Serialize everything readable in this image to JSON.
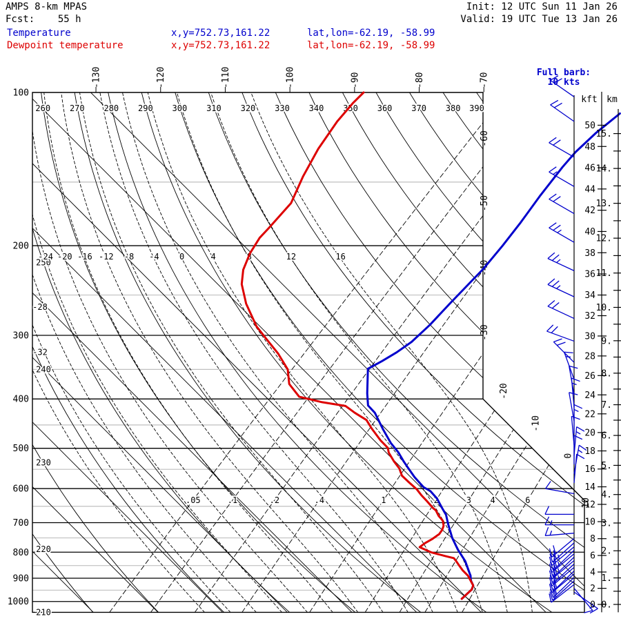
{
  "header": {
    "model": "AMPS 8-km MPAS",
    "fcst": "Fcst:    55 h",
    "init": "Init: 12 UTC Sun 11 Jan 26",
    "valid": "Valid: 19 UTC Tue 13 Jan 26",
    "temp_label": "Temperature",
    "temp_xy": "x,y=752.73,161.22",
    "temp_latlon": "lat,lon=-62.19, -58.99",
    "dewp_label": "Dewpoint temperature",
    "dewp_xy": "x,y=752.73,161.22",
    "dewp_latlon": "lat,lon=-62.19, -58.99"
  },
  "wind_legend": {
    "line1": "Full barb:",
    "line2": "10 kts"
  },
  "colors": {
    "temperature": "#0000cc",
    "dewpoint": "#dd0000",
    "grid": "#000000",
    "grid_minor": "#bfbfbf",
    "barbs": "#0000cc"
  },
  "chart_data": {
    "type": "skewt-log-p (pressure hPa vs temperature degC)",
    "pressure_axis_labels": [
      100,
      200,
      300,
      400,
      500,
      600,
      700,
      800,
      900,
      1000
    ],
    "pressure_minor_lines": [
      150,
      250,
      350,
      450,
      550,
      650,
      750,
      850,
      950
    ],
    "pressure_bottom": 1050,
    "isotherm_step": 10,
    "isotherm_top_labels": [
      -130,
      -120,
      -110,
      -100,
      -90,
      -80,
      -70
    ],
    "isotherm_right_labels": [
      -60,
      -50,
      -40,
      -30
    ],
    "isotherm_edge_labels": [
      -20,
      -10,
      0,
      10
    ],
    "dry_adiabat_top_labels": [
      260,
      270,
      280,
      290,
      300,
      310,
      320,
      330,
      340,
      350,
      360,
      370,
      380,
      390
    ],
    "dry_adiabat_left_labels": [
      250,
      240,
      230,
      220,
      210
    ],
    "moist_adiabat_row_labels": [
      -24,
      -20,
      -16,
      -12,
      -8,
      -4,
      0,
      4,
      8,
      12,
      16
    ],
    "moist_adiabat_left_labels": [
      -28,
      -32
    ],
    "moist_adiabats_drawn": [
      -36,
      -32,
      -28,
      -24,
      -20,
      -16,
      -12,
      -8,
      -4,
      0,
      4,
      8,
      12,
      16
    ],
    "mixing_ratio_g_kg": [
      0.05,
      0.1,
      0.2,
      0.4,
      1,
      2,
      3,
      4,
      6
    ],
    "mixing_ratio_labels": [
      ".05",
      ".1",
      ".2",
      ".4",
      "1",
      "2",
      "3",
      "4",
      "6"
    ],
    "kft_axis": {
      "title": "kft",
      "max": 50,
      "label_step": 2
    },
    "km_axis": {
      "title": "km",
      "max": 15,
      "label_step": 1,
      "tick_step": 0.5,
      "label_suffix": "."
    },
    "temperature_profile_p_T": [
      [
        988,
        4.9
      ],
      [
        947,
        5.0
      ],
      [
        930,
        4.6
      ],
      [
        908,
        3.4
      ],
      [
        890,
        2.7
      ],
      [
        877,
        2.0
      ],
      [
        833,
        -0.4
      ],
      [
        791,
        -3.3
      ],
      [
        750,
        -6.0
      ],
      [
        704,
        -8.8
      ],
      [
        676,
        -10.5
      ],
      [
        655,
        -12.2
      ],
      [
        627,
        -14.5
      ],
      [
        607,
        -16.6
      ],
      [
        596,
        -18.3
      ],
      [
        570,
        -21.2
      ],
      [
        547,
        -23.6
      ],
      [
        530,
        -25.4
      ],
      [
        509,
        -27.6
      ],
      [
        488,
        -30.2
      ],
      [
        458,
        -33.6
      ],
      [
        426,
        -37.3
      ],
      [
        412,
        -39.5
      ],
      [
        390,
        -41.5
      ],
      [
        349,
        -45.2
      ],
      [
        337,
        -44.2
      ],
      [
        324,
        -43.3
      ],
      [
        309,
        -42.6
      ],
      [
        286,
        -42.4
      ],
      [
        260,
        -42.6
      ],
      [
        240,
        -42.7
      ],
      [
        222,
        -42.8
      ],
      [
        200,
        -43.4
      ],
      [
        180,
        -44.2
      ],
      [
        160,
        -45.3
      ],
      [
        140,
        -46.3
      ],
      [
        131,
        -46.6
      ],
      [
        120,
        -46.4
      ],
      [
        110,
        -45.7
      ]
    ],
    "dewpoint_profile_p_Td": [
      [
        988,
        4.9
      ],
      [
        947,
        5.0
      ],
      [
        930,
        4.6
      ],
      [
        890,
        2.3
      ],
      [
        868,
        0.6
      ],
      [
        846,
        -0.9
      ],
      [
        833,
        -1.8
      ],
      [
        822,
        -2.6
      ],
      [
        814,
        -4.3
      ],
      [
        800,
        -7.1
      ],
      [
        782,
        -9.6
      ],
      [
        768,
        -9.4
      ],
      [
        753,
        -8.9
      ],
      [
        737,
        -8.6
      ],
      [
        723,
        -8.8
      ],
      [
        710,
        -9.2
      ],
      [
        694,
        -10.1
      ],
      [
        679,
        -11.5
      ],
      [
        662,
        -12.8
      ],
      [
        656,
        -13.5
      ],
      [
        635,
        -15.6
      ],
      [
        618,
        -17.4
      ],
      [
        602,
        -19.0
      ],
      [
        584,
        -21.2
      ],
      [
        566,
        -23.4
      ],
      [
        548,
        -24.9
      ],
      [
        531,
        -26.8
      ],
      [
        510,
        -29.0
      ],
      [
        499,
        -29.9
      ],
      [
        483,
        -32.1
      ],
      [
        457,
        -35.4
      ],
      [
        440,
        -37.5
      ],
      [
        426,
        -40.4
      ],
      [
        413,
        -42.9
      ],
      [
        406,
        -47.1
      ],
      [
        396,
        -51.5
      ],
      [
        374,
        -55.0
      ],
      [
        350,
        -57.5
      ],
      [
        326,
        -61.4
      ],
      [
        305,
        -65.5
      ],
      [
        288,
        -69.0
      ],
      [
        260,
        -74.1
      ],
      [
        238,
        -77.8
      ],
      [
        223,
        -79.8
      ],
      [
        207,
        -81.3
      ],
      [
        193,
        -82.2
      ],
      [
        184,
        -82.3
      ],
      [
        179,
        -82.4
      ],
      [
        165,
        -82.7
      ],
      [
        146,
        -85.0
      ],
      [
        129,
        -86.9
      ],
      [
        114,
        -88.2
      ],
      [
        105,
        -88.6
      ],
      [
        100,
        -88.6
      ]
    ],
    "wind_barbs_p_kt_dir": [
      [
        102,
        20,
        305
      ],
      [
        114,
        20,
        305
      ],
      [
        134,
        20,
        300
      ],
      [
        153,
        15,
        300
      ],
      [
        173,
        20,
        300
      ],
      [
        197,
        25,
        300
      ],
      [
        224,
        25,
        295
      ],
      [
        252,
        25,
        295
      ],
      [
        278,
        22,
        295
      ],
      [
        308,
        20,
        290
      ],
      [
        339,
        20,
        315
      ],
      [
        366,
        15,
        340
      ],
      [
        392,
        12,
        350
      ],
      [
        415,
        15,
        355
      ],
      [
        442,
        10,
        350
      ],
      [
        468,
        15,
        0
      ],
      [
        493,
        10,
        355
      ],
      [
        517,
        15,
        5
      ],
      [
        538,
        10,
        0
      ],
      [
        561,
        15,
        10
      ],
      [
        585,
        10,
        5
      ],
      [
        614,
        10,
        280
      ],
      [
        674,
        12,
        270
      ],
      [
        707,
        15,
        270
      ],
      [
        734,
        17,
        265
      ],
      [
        752,
        20,
        230
      ],
      [
        767,
        20,
        228
      ],
      [
        781,
        25,
        230
      ],
      [
        793,
        22,
        226
      ],
      [
        806,
        25,
        230
      ],
      [
        818,
        22,
        226
      ],
      [
        831,
        25,
        230
      ],
      [
        844,
        22,
        227
      ],
      [
        857,
        25,
        230
      ],
      [
        871,
        22,
        226
      ],
      [
        883,
        22,
        230
      ],
      [
        897,
        20,
        226
      ],
      [
        911,
        18,
        228
      ],
      [
        926,
        20,
        232
      ],
      [
        942,
        10,
        140
      ],
      [
        958,
        15,
        125
      ]
    ]
  }
}
